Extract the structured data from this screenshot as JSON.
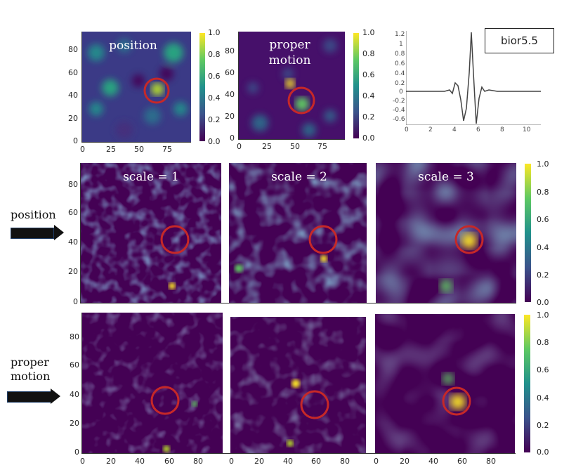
{
  "top": {
    "position_label": "position",
    "proper_motion_label": "proper\nmotion",
    "yticks": [
      "80",
      "60",
      "40",
      "20",
      "0"
    ],
    "xticks": [
      "0",
      "25",
      "50",
      "75"
    ],
    "cbar_ticks": [
      "1.0",
      "0.8",
      "0.6",
      "0.4",
      "0.2",
      "0.0"
    ]
  },
  "wavelet": {
    "name": "bior5.5",
    "yticks": [
      "1.2",
      "1",
      "0.8",
      "0.6",
      "0.4",
      "0.2",
      "0",
      "-0.2",
      "-0.4",
      "-0.6"
    ],
    "xticks": [
      "0",
      "2",
      "4",
      "6",
      "8",
      "10"
    ]
  },
  "rows": {
    "position_label": "position",
    "proper_motion_label": "proper\nmotion",
    "scale_labels": [
      "scale = 1",
      "scale = 2",
      "scale = 3"
    ],
    "yticks": [
      "80",
      "60",
      "40",
      "20",
      "0"
    ],
    "xticks": [
      "0",
      "20",
      "40",
      "60",
      "80"
    ],
    "cbar_ticks": [
      "1.0",
      "0.8",
      "0.6",
      "0.4",
      "0.2",
      "0.0"
    ]
  },
  "colors": {
    "viridis_dark": "#440154",
    "viridis_yellow": "#fde725",
    "highlight_circle": "#c62828"
  }
}
